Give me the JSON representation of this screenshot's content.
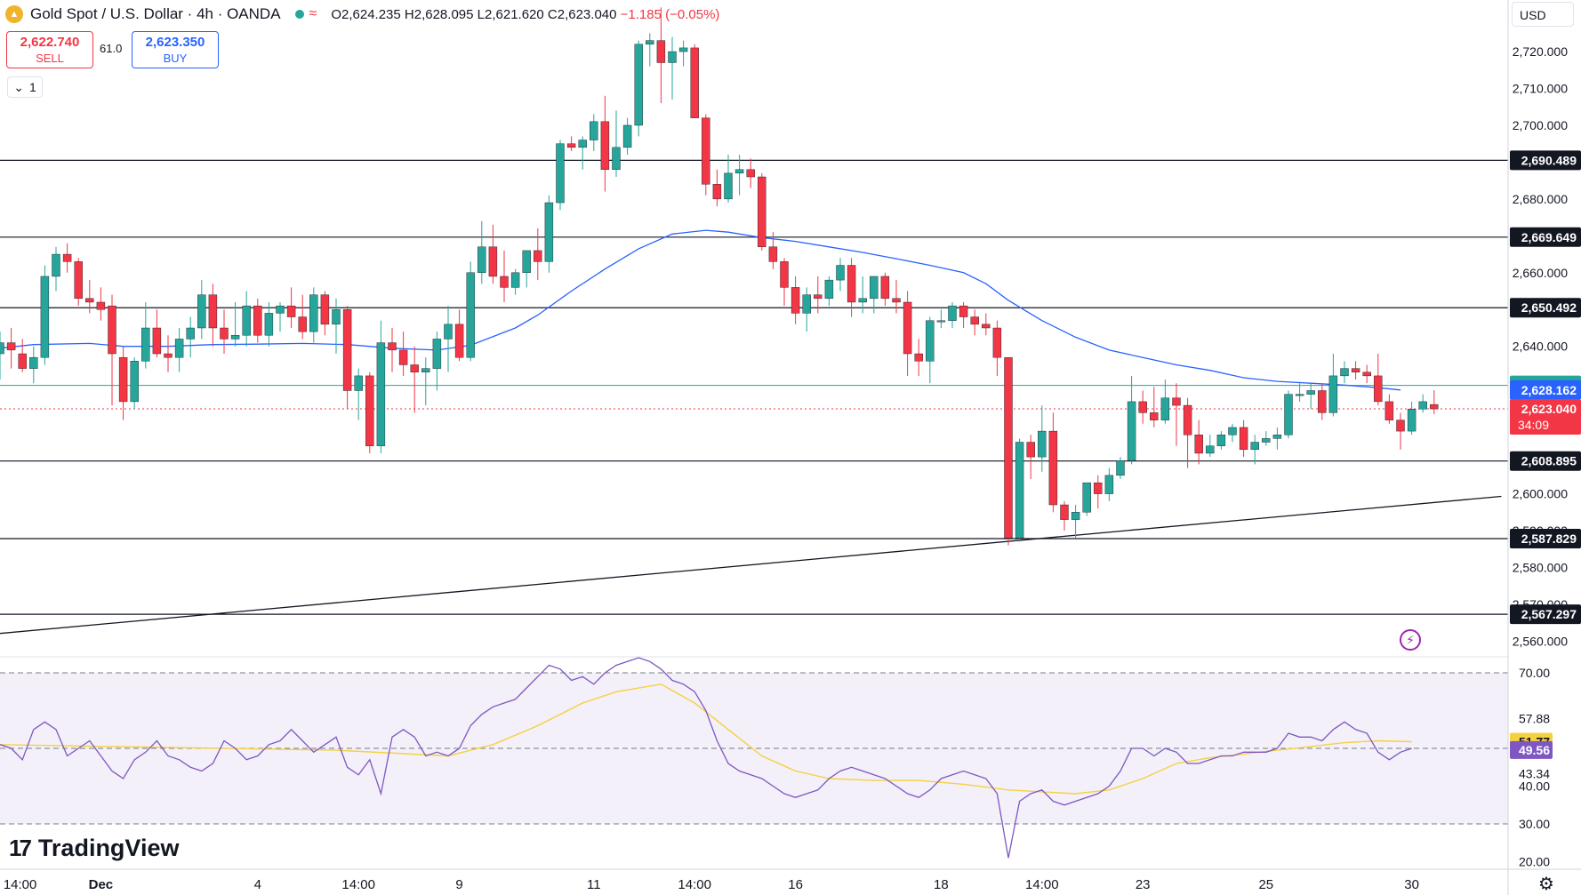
{
  "header": {
    "symbol": "Gold Spot / U.S. Dollar · 4h · OANDA",
    "open": "O2,624.235",
    "high": "H2,628.095",
    "low": "L2,621.620",
    "close": "C2,623.040",
    "change": "−1.185 (−0.05%)"
  },
  "trade": {
    "sell_price": "2,622.740",
    "sell_label": "SELL",
    "spread": "61.0",
    "buy_price": "2,623.350",
    "buy_label": "BUY",
    "lots": "1"
  },
  "currency": "USD",
  "brand": "TradingView",
  "colors": {
    "up": "#26a69a",
    "down": "#f23645",
    "ma": "#2962ff",
    "rsi": "#7e57c2",
    "rsi_ma": "#f5d142",
    "rsi_band": "#7e57c2"
  },
  "chart_data": [
    {
      "type": "candlestick",
      "title": "Gold Spot / U.S. Dollar",
      "timeframe": "4h",
      "ylim": [
        2556,
        2734
      ],
      "y_ticks": [
        "2,720.000",
        "2,710.000",
        "2,700.000",
        "2,680.000",
        "2,660.000",
        "2,640.000",
        "2,600.000",
        "2,590.000",
        "2,580.000",
        "2,570.000",
        "2,560.000"
      ],
      "x_ticks": [
        "14:00",
        "Dec",
        "4",
        "14:00",
        "9",
        "11",
        "14:00",
        "16",
        "18",
        "14:00",
        "23",
        "25",
        "30"
      ],
      "horizontal_levels": [
        {
          "value": 2690.489,
          "label": "2,690.489"
        },
        {
          "value": 2669.649,
          "label": "2,669.649"
        },
        {
          "value": 2650.492,
          "label": "2,650.492"
        },
        {
          "value": 2608.895,
          "label": "2,608.895"
        },
        {
          "value": 2587.829,
          "label": "2,587.829"
        },
        {
          "value": 2567.297,
          "label": "2,567.297"
        }
      ],
      "green_level": {
        "value": 2629.427,
        "label": "2,629.427"
      },
      "ma_value": {
        "value": 2628.162,
        "label": "2,628.162"
      },
      "last_price": {
        "value": 2623.04,
        "label": "2,623.040",
        "countdown": "34:09"
      },
      "trendline": [
        [
          0,
          2562.1
        ],
        [
          134,
          2599.3
        ]
      ],
      "candles": [
        [
          2638,
          2644,
          2631,
          2641
        ],
        [
          2641,
          2645,
          2634,
          2639
        ],
        [
          2638,
          2642,
          2633,
          2634
        ],
        [
          2634,
          2640,
          2630,
          2637
        ],
        [
          2637,
          2662,
          2635,
          2659
        ],
        [
          2659,
          2667,
          2655,
          2665
        ],
        [
          2665,
          2668,
          2660,
          2663
        ],
        [
          2663,
          2664,
          2651,
          2653
        ],
        [
          2653,
          2658,
          2649,
          2652
        ],
        [
          2652,
          2656,
          2647,
          2650
        ],
        [
          2651,
          2654,
          2624,
          2638
        ],
        [
          2637,
          2640,
          2620,
          2625
        ],
        [
          2625,
          2637,
          2623,
          2636
        ],
        [
          2636,
          2652,
          2634,
          2645
        ],
        [
          2645,
          2650,
          2637,
          2638
        ],
        [
          2638,
          2643,
          2633,
          2637
        ],
        [
          2637,
          2645,
          2633,
          2642
        ],
        [
          2642,
          2648,
          2637,
          2645
        ],
        [
          2645,
          2658,
          2642,
          2654
        ],
        [
          2654,
          2657,
          2640,
          2645
        ],
        [
          2645,
          2650,
          2638,
          2642
        ],
        [
          2642,
          2652,
          2640,
          2643
        ],
        [
          2643,
          2655,
          2640,
          2651
        ],
        [
          2651,
          2653,
          2641,
          2643
        ],
        [
          2643,
          2652,
          2640,
          2649
        ],
        [
          2649,
          2652,
          2644,
          2651
        ],
        [
          2651,
          2656,
          2645,
          2648
        ],
        [
          2648,
          2654,
          2642,
          2644
        ],
        [
          2644,
          2656,
          2641,
          2654
        ],
        [
          2654,
          2655,
          2643,
          2646
        ],
        [
          2646,
          2653,
          2638,
          2650
        ],
        [
          2650,
          2651,
          2623,
          2628
        ],
        [
          2628,
          2634,
          2620,
          2632
        ],
        [
          2632,
          2633,
          2611,
          2613
        ],
        [
          2613,
          2647,
          2611,
          2641
        ],
        [
          2641,
          2645,
          2633,
          2639
        ],
        [
          2639,
          2644,
          2632,
          2635
        ],
        [
          2635,
          2640,
          2622,
          2633
        ],
        [
          2633,
          2637,
          2624,
          2634
        ],
        [
          2634,
          2644,
          2628,
          2642
        ],
        [
          2642,
          2651,
          2633,
          2646
        ],
        [
          2646,
          2650,
          2636,
          2637
        ],
        [
          2637,
          2663,
          2636,
          2660
        ],
        [
          2660,
          2674,
          2657,
          2667
        ],
        [
          2667,
          2673,
          2657,
          2659
        ],
        [
          2659,
          2666,
          2652,
          2656
        ],
        [
          2656,
          2661,
          2654,
          2660
        ],
        [
          2660,
          2666,
          2656,
          2666
        ],
        [
          2666,
          2672,
          2658,
          2663
        ],
        [
          2663,
          2681,
          2660,
          2679
        ],
        [
          2679,
          2696,
          2677,
          2695
        ],
        [
          2695,
          2697,
          2693,
          2694
        ],
        [
          2694,
          2697,
          2688,
          2696
        ],
        [
          2696,
          2703,
          2693,
          2701
        ],
        [
          2701,
          2708,
          2682,
          2688
        ],
        [
          2688,
          2704,
          2686,
          2694
        ],
        [
          2694,
          2702,
          2692,
          2700
        ],
        [
          2700,
          2723,
          2697,
          2722
        ],
        [
          2722,
          2725,
          2716,
          2723
        ],
        [
          2723,
          2732,
          2706,
          2717
        ],
        [
          2717,
          2724,
          2707,
          2720
        ],
        [
          2720,
          2723,
          2716,
          2721
        ],
        [
          2721,
          2722,
          2702,
          2702
        ],
        [
          2702,
          2703,
          2681,
          2684
        ],
        [
          2684,
          2688,
          2678,
          2680
        ],
        [
          2680,
          2692,
          2679,
          2687
        ],
        [
          2687,
          2692,
          2681,
          2688
        ],
        [
          2688,
          2691,
          2683,
          2686
        ],
        [
          2686,
          2687,
          2666,
          2667
        ],
        [
          2667,
          2671,
          2661,
          2663
        ],
        [
          2663,
          2664,
          2651,
          2656
        ],
        [
          2656,
          2659,
          2646,
          2649
        ],
        [
          2649,
          2656,
          2644,
          2654
        ],
        [
          2654,
          2659,
          2649,
          2653
        ],
        [
          2653,
          2659,
          2651,
          2658
        ],
        [
          2658,
          2664,
          2655,
          2662
        ],
        [
          2662,
          2664,
          2648,
          2652
        ],
        [
          2652,
          2659,
          2649,
          2653
        ],
        [
          2653,
          2659,
          2649,
          2659
        ],
        [
          2659,
          2660,
          2651,
          2653
        ],
        [
          2653,
          2658,
          2649,
          2652
        ],
        [
          2652,
          2655,
          2632,
          2638
        ],
        [
          2638,
          2642,
          2632,
          2636
        ],
        [
          2636,
          2648,
          2630,
          2647
        ],
        [
          2647,
          2650,
          2645,
          2647
        ],
        [
          2647,
          2652,
          2645,
          2651
        ],
        [
          2651,
          2652,
          2645,
          2648
        ],
        [
          2648,
          2650,
          2643,
          2646
        ],
        [
          2646,
          2649,
          2643,
          2645
        ],
        [
          2645,
          2647,
          2632,
          2637
        ],
        [
          2637,
          2637,
          2586,
          2588
        ],
        [
          2588,
          2615,
          2587,
          2614
        ],
        [
          2614,
          2616,
          2604,
          2610
        ],
        [
          2610,
          2624,
          2606,
          2617
        ],
        [
          2617,
          2622,
          2595,
          2597
        ],
        [
          2597,
          2598,
          2590,
          2593
        ],
        [
          2593,
          2597,
          2588,
          2595
        ],
        [
          2595,
          2603,
          2594,
          2603
        ],
        [
          2603,
          2605,
          2596,
          2600
        ],
        [
          2600,
          2607,
          2598,
          2605
        ],
        [
          2605,
          2610,
          2604,
          2609
        ],
        [
          2609,
          2632,
          2608,
          2625
        ],
        [
          2625,
          2628,
          2619,
          2622
        ],
        [
          2622,
          2629,
          2618,
          2620
        ],
        [
          2620,
          2631,
          2619,
          2626
        ],
        [
          2626,
          2630,
          2613,
          2624
        ],
        [
          2624,
          2626,
          2607,
          2616
        ],
        [
          2616,
          2620,
          2608,
          2611
        ],
        [
          2611,
          2616,
          2610,
          2613
        ],
        [
          2613,
          2617,
          2612,
          2616
        ],
        [
          2616,
          2619,
          2614,
          2618
        ],
        [
          2618,
          2620,
          2610,
          2612
        ],
        [
          2612,
          2616,
          2608,
          2614
        ],
        [
          2614,
          2617,
          2613,
          2615
        ],
        [
          2615,
          2618,
          2612,
          2616
        ],
        [
          2616,
          2628,
          2615,
          2627
        ],
        [
          2627,
          2630,
          2625,
          2627
        ],
        [
          2627,
          2630,
          2623,
          2628
        ],
        [
          2628,
          2630,
          2620,
          2622
        ],
        [
          2622,
          2638,
          2621,
          2632
        ],
        [
          2632,
          2636,
          2630,
          2634
        ],
        [
          2634,
          2636,
          2631,
          2633
        ],
        [
          2633,
          2635,
          2630,
          2632
        ],
        [
          2632,
          2638,
          2624,
          2625
        ],
        [
          2625,
          2627,
          2619,
          2620
        ],
        [
          2620,
          2622,
          2612,
          2617
        ],
        [
          2617,
          2625,
          2616,
          2623
        ],
        [
          2623,
          2627,
          2622,
          2625
        ],
        [
          2624.235,
          2628.095,
          2621.62,
          2623.04
        ]
      ],
      "ma_curve": [
        [
          0,
          2639.5
        ],
        [
          3,
          2640.5
        ],
        [
          8,
          2640.8
        ],
        [
          11,
          2640.0
        ],
        [
          15,
          2640.0
        ],
        [
          19,
          2640.5
        ],
        [
          23,
          2640.6
        ],
        [
          27,
          2640.8
        ],
        [
          31,
          2640.5
        ],
        [
          35,
          2639.5
        ],
        [
          39,
          2639.0
        ],
        [
          42,
          2640.3
        ],
        [
          46,
          2645.0
        ],
        [
          48,
          2648.5
        ],
        [
          51,
          2655.0
        ],
        [
          54,
          2661.0
        ],
        [
          57,
          2666.5
        ],
        [
          60,
          2670.5
        ],
        [
          63,
          2671.5
        ],
        [
          65,
          2671.0
        ],
        [
          68,
          2669.5
        ],
        [
          71,
          2668.5
        ],
        [
          74,
          2667.0
        ],
        [
          77,
          2665.5
        ],
        [
          80,
          2663.8
        ],
        [
          83,
          2662.0
        ],
        [
          86,
          2660.0
        ],
        [
          88,
          2657.0
        ],
        [
          90,
          2652.5
        ],
        [
          93,
          2647.0
        ],
        [
          96,
          2642.5
        ],
        [
          99,
          2639.0
        ],
        [
          102,
          2637.0
        ],
        [
          105,
          2635.0
        ],
        [
          108,
          2633.5
        ],
        [
          111,
          2631.5
        ],
        [
          114,
          2630.5
        ],
        [
          117,
          2630.0
        ],
        [
          120,
          2629.5
        ],
        [
          123,
          2628.8
        ],
        [
          125,
          2628.16
        ]
      ]
    },
    {
      "type": "line",
      "title": "RSI",
      "ylim": [
        18,
        74
      ],
      "y_ticks": [
        "70.00",
        "57.88",
        "43.34",
        "40.00",
        "30.00",
        "20.00"
      ],
      "levels": [
        70,
        50,
        30
      ],
      "rsi_value": {
        "value": 49.56,
        "label": "49.56"
      },
      "rsi_ma_value": {
        "value": 51.77,
        "label": "51.77"
      },
      "rsi": [
        51,
        50,
        47,
        55,
        57,
        55,
        48,
        50,
        52,
        48,
        44,
        42,
        47,
        49,
        52,
        48,
        47,
        45,
        44,
        46,
        52,
        50,
        47,
        48,
        51,
        52,
        55,
        52,
        49,
        51,
        53,
        45,
        43,
        47,
        38,
        53,
        55,
        53,
        48,
        49,
        48,
        50,
        56,
        59,
        61,
        62,
        63,
        66,
        69,
        72,
        71,
        68,
        69,
        67,
        70,
        72,
        73,
        74,
        73,
        71,
        68,
        67,
        65,
        60,
        52,
        46,
        44,
        43,
        42,
        40,
        38,
        37,
        38,
        39,
        42,
        44,
        45,
        44,
        43,
        42,
        40,
        38,
        37,
        39,
        42,
        43,
        44,
        43,
        42,
        38,
        21,
        36,
        38,
        39,
        36,
        35,
        36,
        37,
        38,
        40,
        44,
        50,
        50,
        48,
        50,
        49,
        46,
        46,
        47,
        48,
        48,
        49,
        49,
        49,
        50,
        54,
        53,
        53,
        52,
        55,
        57,
        55,
        54,
        49,
        47,
        49,
        50
      ],
      "rsi_ma_curve": [
        [
          0,
          51
        ],
        [
          10,
          50.5
        ],
        [
          20,
          50
        ],
        [
          30,
          49.5
        ],
        [
          40,
          48
        ],
        [
          44,
          51
        ],
        [
          48,
          56
        ],
        [
          52,
          62
        ],
        [
          55,
          65
        ],
        [
          59,
          67
        ],
        [
          62,
          62
        ],
        [
          65,
          55
        ],
        [
          68,
          48
        ],
        [
          71,
          44
        ],
        [
          74,
          42
        ],
        [
          78,
          41.5
        ],
        [
          82,
          41.5
        ],
        [
          86,
          40.5
        ],
        [
          90,
          39
        ],
        [
          93,
          38.5
        ],
        [
          96,
          38
        ],
        [
          99,
          39
        ],
        [
          102,
          42
        ],
        [
          105,
          46
        ],
        [
          108,
          47.5
        ],
        [
          111,
          48.5
        ],
        [
          114,
          49.5
        ],
        [
          117,
          50.5
        ],
        [
          120,
          51.5
        ],
        [
          123,
          52
        ],
        [
          126,
          51.77
        ]
      ]
    }
  ]
}
